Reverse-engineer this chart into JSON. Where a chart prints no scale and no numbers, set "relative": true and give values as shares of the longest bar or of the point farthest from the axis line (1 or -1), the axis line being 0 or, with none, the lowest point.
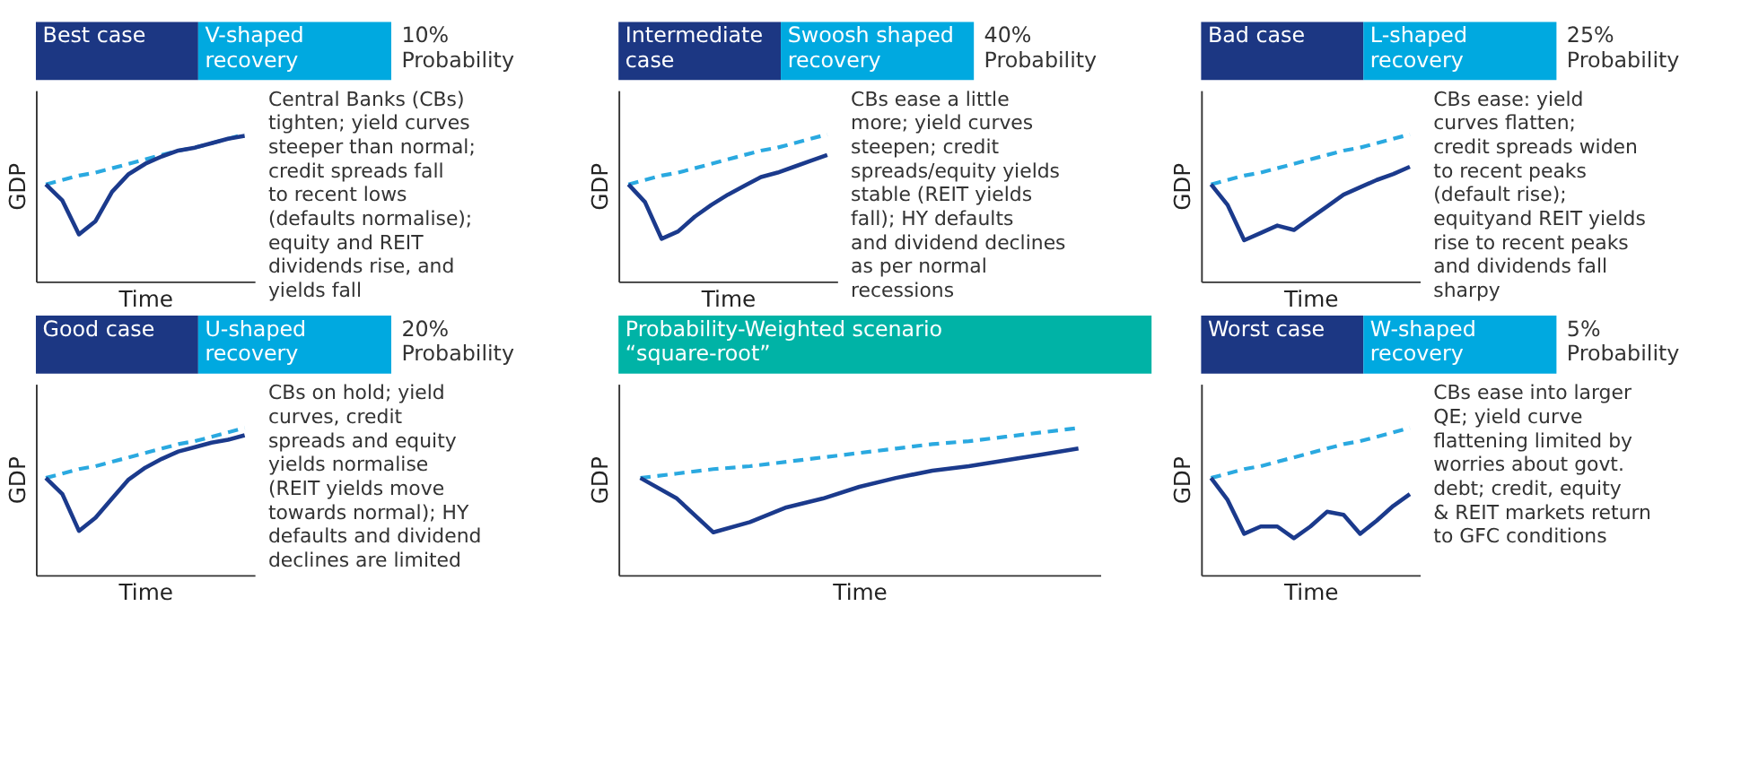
{
  "chart_data": [
    {
      "type": "line",
      "title": "Best case",
      "subtitle": "V-shaped recovery",
      "xlabel": "Time",
      "ylabel": "GDP",
      "relative": true,
      "tick_labels": false,
      "categories": [
        null,
        null,
        null,
        null,
        null,
        null,
        null,
        null,
        null,
        null,
        null,
        null,
        null
      ],
      "series": [
        {
          "color": "#2aa9e0",
          "line_style": "dashed",
          "values": [
            0.66,
            0.69,
            0.72,
            0.74,
            0.77,
            0.8,
            0.83,
            0.86,
            0.89,
            0.91,
            0.94,
            0.97,
            1.0
          ]
        },
        {
          "color": "#1b3a8c",
          "values": [
            0.66,
            0.55,
            0.32,
            0.41,
            0.61,
            0.73,
            0.8,
            0.85,
            0.89,
            0.91,
            0.94,
            0.97,
            0.99
          ]
        }
      ],
      "annotations": [
        "10% Probability",
        "Central Banks (CBs) tighten; yield curves steeper than normal; credit spreads fall to recent lows (defaults normalise); equity and REIT dividends rise, and yields fall"
      ]
    },
    {
      "type": "line",
      "title": "Intermediate case",
      "subtitle": "Swoosh shaped recovery",
      "xlabel": "Time",
      "ylabel": "GDP",
      "relative": true,
      "tick_labels": false,
      "categories": [
        null,
        null,
        null,
        null,
        null,
        null,
        null,
        null,
        null,
        null,
        null,
        null,
        null
      ],
      "series": [
        {
          "color": "#2aa9e0",
          "line_style": "dashed",
          "values": [
            0.66,
            0.69,
            0.72,
            0.74,
            0.77,
            0.8,
            0.83,
            0.86,
            0.89,
            0.91,
            0.94,
            0.97,
            1.0
          ]
        },
        {
          "color": "#1b3a8c",
          "values": [
            0.66,
            0.54,
            0.29,
            0.34,
            0.44,
            0.52,
            0.59,
            0.65,
            0.71,
            0.74,
            0.78,
            0.82,
            0.86
          ]
        }
      ],
      "annotations": [
        "40% Probability",
        "CBs ease a little more; yield curves steepen; credit spreads/equity yields stable (REIT yields fall); HY defaults and dividend declines as per normal recessions"
      ]
    },
    {
      "type": "line",
      "title": "Bad case",
      "subtitle": "L-shaped recovery",
      "xlabel": "Time",
      "ylabel": "GDP",
      "relative": true,
      "tick_labels": false,
      "categories": [
        null,
        null,
        null,
        null,
        null,
        null,
        null,
        null,
        null,
        null,
        null,
        null,
        null
      ],
      "series": [
        {
          "color": "#2aa9e0",
          "line_style": "dashed",
          "values": [
            0.66,
            0.69,
            0.72,
            0.74,
            0.77,
            0.8,
            0.83,
            0.86,
            0.89,
            0.91,
            0.94,
            0.97,
            1.0
          ]
        },
        {
          "color": "#1b3a8c",
          "values": [
            0.66,
            0.52,
            0.28,
            0.33,
            0.38,
            0.35,
            0.43,
            0.51,
            0.59,
            0.64,
            0.69,
            0.73,
            0.78
          ]
        }
      ],
      "annotations": [
        "25% Probability",
        "CBs ease: yield curves flatten; credit spreads widen to recent peaks (default rise); equityand REIT yields rise to recent peaks and dividends fall sharpy"
      ]
    },
    {
      "type": "line",
      "title": "Good case",
      "subtitle": "U-shaped recovery",
      "xlabel": "Time",
      "ylabel": "GDP",
      "relative": true,
      "tick_labels": false,
      "categories": [
        null,
        null,
        null,
        null,
        null,
        null,
        null,
        null,
        null,
        null,
        null,
        null,
        null
      ],
      "series": [
        {
          "color": "#2aa9e0",
          "line_style": "dashed",
          "values": [
            0.66,
            0.69,
            0.72,
            0.74,
            0.77,
            0.8,
            0.83,
            0.86,
            0.89,
            0.91,
            0.94,
            0.97,
            1.0
          ]
        },
        {
          "color": "#1b3a8c",
          "values": [
            0.66,
            0.55,
            0.3,
            0.39,
            0.52,
            0.65,
            0.73,
            0.79,
            0.84,
            0.87,
            0.9,
            0.92,
            0.95
          ]
        }
      ],
      "annotations": [
        "20% Probability",
        "CBs on hold; yield curves, credit spreads and equity yields normalise (REIT yields move towards normal); HY defaults and dividend declines are limited"
      ]
    },
    {
      "type": "line",
      "title": "Probability-Weighted scenario “square-root”",
      "xlabel": "Time",
      "ylabel": "GDP",
      "relative": true,
      "tick_labels": false,
      "categories": [
        null,
        null,
        null,
        null,
        null,
        null,
        null,
        null,
        null,
        null,
        null,
        null,
        null
      ],
      "series": [
        {
          "color": "#2aa9e0",
          "line_style": "dashed",
          "values": [
            0.66,
            0.69,
            0.72,
            0.74,
            0.77,
            0.8,
            0.83,
            0.86,
            0.89,
            0.91,
            0.94,
            0.97,
            1.0
          ]
        },
        {
          "color": "#1b3a8c",
          "values": [
            0.66,
            0.52,
            0.29,
            0.36,
            0.46,
            0.52,
            0.6,
            0.66,
            0.71,
            0.74,
            0.78,
            0.82,
            0.86
          ]
        }
      ]
    },
    {
      "type": "line",
      "title": "Worst case",
      "subtitle": "W-shaped recovery",
      "xlabel": "Time",
      "ylabel": "GDP",
      "relative": true,
      "tick_labels": false,
      "categories": [
        null,
        null,
        null,
        null,
        null,
        null,
        null,
        null,
        null,
        null,
        null,
        null,
        null
      ],
      "series": [
        {
          "color": "#2aa9e0",
          "line_style": "dashed",
          "values": [
            0.66,
            0.69,
            0.72,
            0.74,
            0.77,
            0.8,
            0.83,
            0.86,
            0.89,
            0.91,
            0.94,
            0.97,
            1.0
          ]
        },
        {
          "color": "#1b3a8c",
          "values": [
            0.66,
            0.51,
            0.28,
            0.33,
            0.33,
            0.25,
            0.33,
            0.43,
            0.41,
            0.28,
            0.37,
            0.47,
            0.55
          ]
        }
      ],
      "annotations": [
        "5% Probability",
        "CBs ease into larger QE; yield curve flattening limited by worries about govt. debt; credit, equity & REIT markets return to GFC conditions"
      ]
    }
  ]
}
